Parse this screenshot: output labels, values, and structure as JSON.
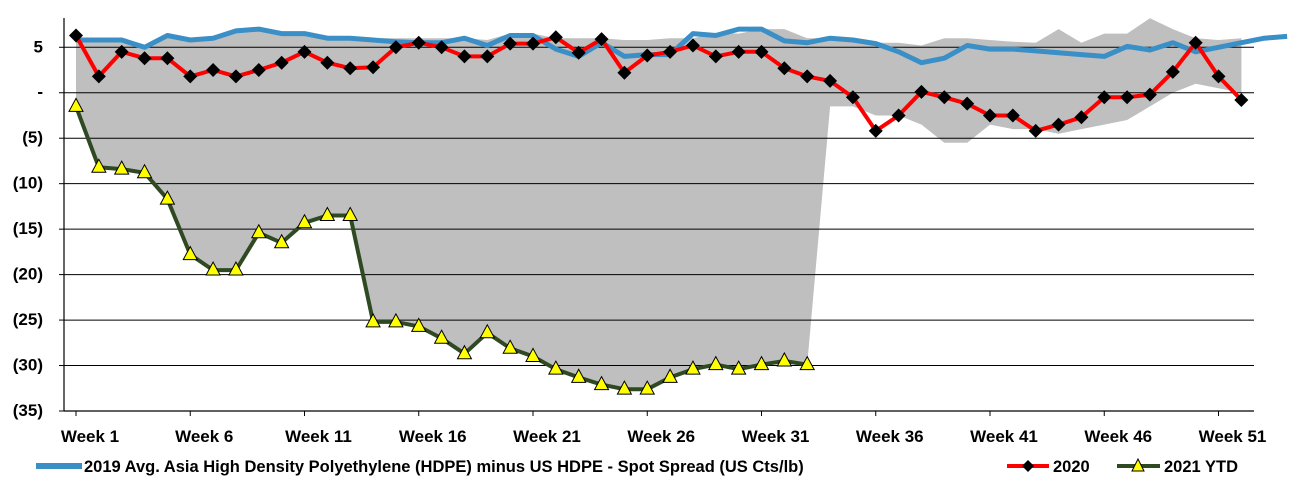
{
  "chart_data": {
    "type": "line",
    "title": "",
    "xlabel": "",
    "ylabel": "",
    "ylim": [
      -35,
      8
    ],
    "yticks": [
      5,
      0,
      -5,
      -10,
      -15,
      -20,
      -25,
      -30,
      -35
    ],
    "ytick_labels": [
      "5",
      "-",
      "(5)",
      "(10)",
      "(15)",
      "(20)",
      "(25)",
      "(30)",
      "(35)"
    ],
    "xtick_weeks": [
      1,
      6,
      11,
      16,
      21,
      26,
      31,
      36,
      41,
      46,
      51
    ],
    "xtick_labels": [
      "Week 1",
      "Week 6",
      "Week 11",
      "Week 16",
      "Week 21",
      "Week 26",
      "Week 31",
      "Week 36",
      "Week 41",
      "Week 46",
      "Week 51"
    ],
    "grid": true,
    "legend_position": "bottom",
    "band": {
      "upper": [
        6.0,
        6.0,
        6.0,
        5.0,
        6.5,
        6.0,
        6.2,
        7.0,
        7.2,
        6.7,
        6.7,
        6.2,
        6.2,
        6.0,
        6.0,
        6.0,
        6.0,
        6.0,
        5.8,
        6.5,
        6.5,
        6.0,
        6.0,
        6.0,
        5.8,
        5.8,
        6.0,
        6.0,
        6.6,
        6.5,
        7.0,
        7.0,
        6.0,
        6.0,
        6.0,
        5.5,
        5.5,
        5.2,
        6.0,
        6.0,
        5.8,
        5.6,
        5.5,
        7.0,
        5.5,
        6.5,
        6.5,
        8.2,
        7.0,
        6.0,
        5.8,
        6.0
      ],
      "lower": [
        -1.8,
        -8.2,
        -8.5,
        -9.0,
        -11.8,
        -17.8,
        -19.5,
        -19.5,
        -15.5,
        -16.6,
        -14.3,
        -13.5,
        -13.5,
        -25.2,
        -25.2,
        -25.7,
        -27.0,
        -28.7,
        -26.4,
        -28.1,
        -29.0,
        -30.4,
        -31.3,
        -32.1,
        -32.6,
        -32.6,
        -31.3,
        -30.4,
        -29.9,
        -30.4,
        -29.9,
        -29.5,
        -29.9,
        -1.5,
        -1.5,
        -2.5,
        -2.5,
        -3.5,
        -5.5,
        -5.5,
        -3.5,
        -4.0,
        -4.0,
        -4.5,
        -4.0,
        -3.5,
        -3.0,
        -1.5,
        0.0,
        1.0,
        0.5,
        0.0
      ],
      "color": "#bfbfbf"
    },
    "series": [
      {
        "name": "2019 Avg. Asia High Density Polyethylene (HDPE) minus US HDPE - Spot Spread (US Cts/lb)",
        "color": "#3a8fc6",
        "marker": "none",
        "values": [
          5.8,
          5.8,
          5.8,
          5.0,
          6.3,
          5.8,
          6.0,
          6.8,
          7.0,
          6.5,
          6.5,
          6.0,
          6.0,
          5.8,
          5.6,
          5.5,
          5.5,
          6.0,
          5.2,
          6.3,
          6.3,
          4.8,
          4.0,
          5.5,
          4.0,
          4.2,
          4.2,
          6.5,
          6.3,
          7.0,
          7.0,
          5.7,
          5.5,
          6.0,
          5.8,
          5.4,
          4.5,
          3.3,
          3.8,
          5.2,
          4.8,
          4.8,
          4.6,
          4.4,
          4.2,
          4.0,
          5.1,
          4.7,
          5.5,
          4.5,
          5.0,
          5.5,
          6.0,
          6.2
        ]
      },
      {
        "name": "2020",
        "color": "#ff0000",
        "marker": "diamond",
        "values": [
          6.3,
          1.8,
          4.5,
          3.8,
          3.8,
          1.8,
          2.5,
          1.8,
          2.5,
          3.3,
          4.5,
          3.3,
          2.7,
          2.8,
          5.0,
          5.5,
          5.0,
          4.0,
          4.0,
          5.4,
          5.4,
          6.1,
          4.4,
          5.9,
          2.2,
          4.1,
          4.5,
          5.2,
          4.0,
          4.5,
          4.5,
          2.7,
          1.8,
          1.3,
          -0.5,
          -4.2,
          -2.5,
          0.1,
          -0.5,
          -1.2,
          -2.5,
          -2.5,
          -4.2,
          -3.5,
          -2.7,
          -0.5,
          -0.5,
          -0.2,
          2.3,
          5.5,
          1.8,
          -0.8
        ]
      },
      {
        "name": "2021 YTD",
        "color": "#2f4a22",
        "marker": "triangle",
        "marker_fill": "#ffff00",
        "values": [
          -1.5,
          -8.2,
          -8.4,
          -8.8,
          -11.7,
          -17.8,
          -19.5,
          -19.5,
          -15.4,
          -16.5,
          -14.3,
          -13.5,
          -13.5,
          -25.2,
          -25.2,
          -25.7,
          -27.0,
          -28.7,
          -26.4,
          -28.1,
          -29.0,
          -30.4,
          -31.3,
          -32.1,
          -32.6,
          -32.6,
          -31.3,
          -30.4,
          -29.9,
          -30.4,
          -29.9,
          -29.5,
          -29.9
        ]
      }
    ]
  }
}
